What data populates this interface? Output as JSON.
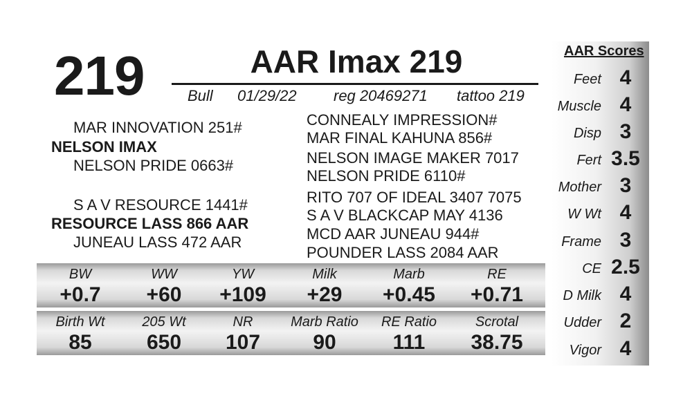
{
  "lot_number": "219",
  "animal_name": "AAR Imax 219",
  "info": {
    "sex": "Bull",
    "birth_date": "01/29/22",
    "registration": "reg 20469271",
    "tattoo": "tattoo 219"
  },
  "pedigree": {
    "sire": "NELSON IMAX",
    "sire_sire": "MAR INNOVATION 251#",
    "sire_dam": "NELSON PRIDE 0663#",
    "sire_sire_sire": "CONNEALY IMPRESSION#",
    "sire_sire_dam": "MAR FINAL KAHUNA 856#",
    "sire_dam_sire": "NELSON IMAGE MAKER 7017",
    "sire_dam_dam": "NELSON PRIDE 6110#",
    "dam": "RESOURCE LASS 866 AAR",
    "dam_sire": "S A V RESOURCE 1441#",
    "dam_dam": "JUNEAU LASS 472 AAR",
    "dam_sire_sire": "RITO 707 OF IDEAL 3407 7075",
    "dam_sire_dam": "S A V BLACKCAP MAY 4136",
    "dam_dam_sire": "MCD AAR JUNEAU 944#",
    "dam_dam_dam": "POUNDER LASS 2084 AAR"
  },
  "epds": [
    {
      "label": "BW",
      "value": "+0.7"
    },
    {
      "label": "WW",
      "value": "+60"
    },
    {
      "label": "YW",
      "value": "+109"
    },
    {
      "label": "Milk",
      "value": "+29"
    },
    {
      "label": "Marb",
      "value": "+0.45"
    },
    {
      "label": "RE",
      "value": "+0.71"
    }
  ],
  "actuals": [
    {
      "label": "Birth Wt",
      "value": "85"
    },
    {
      "label": "205 Wt",
      "value": "650"
    },
    {
      "label": "NR",
      "value": "107"
    },
    {
      "label": "Marb Ratio",
      "value": "90"
    },
    {
      "label": "RE Ratio",
      "value": "111"
    },
    {
      "label": "Scrotal",
      "value": "38.75"
    }
  ],
  "aar_scores": {
    "title": "AAR Scores",
    "items": [
      {
        "label": "Feet",
        "value": "4"
      },
      {
        "label": "Muscle",
        "value": "4"
      },
      {
        "label": "Disp",
        "value": "3"
      },
      {
        "label": "Fert",
        "value": "3.5"
      },
      {
        "label": "Mother",
        "value": "3"
      },
      {
        "label": "W Wt",
        "value": "4"
      },
      {
        "label": "Frame",
        "value": "3"
      },
      {
        "label": "CE",
        "value": "2.5"
      },
      {
        "label": "D Milk",
        "value": "4"
      },
      {
        "label": "Udder",
        "value": "2"
      },
      {
        "label": "Vigor",
        "value": "4"
      }
    ]
  }
}
